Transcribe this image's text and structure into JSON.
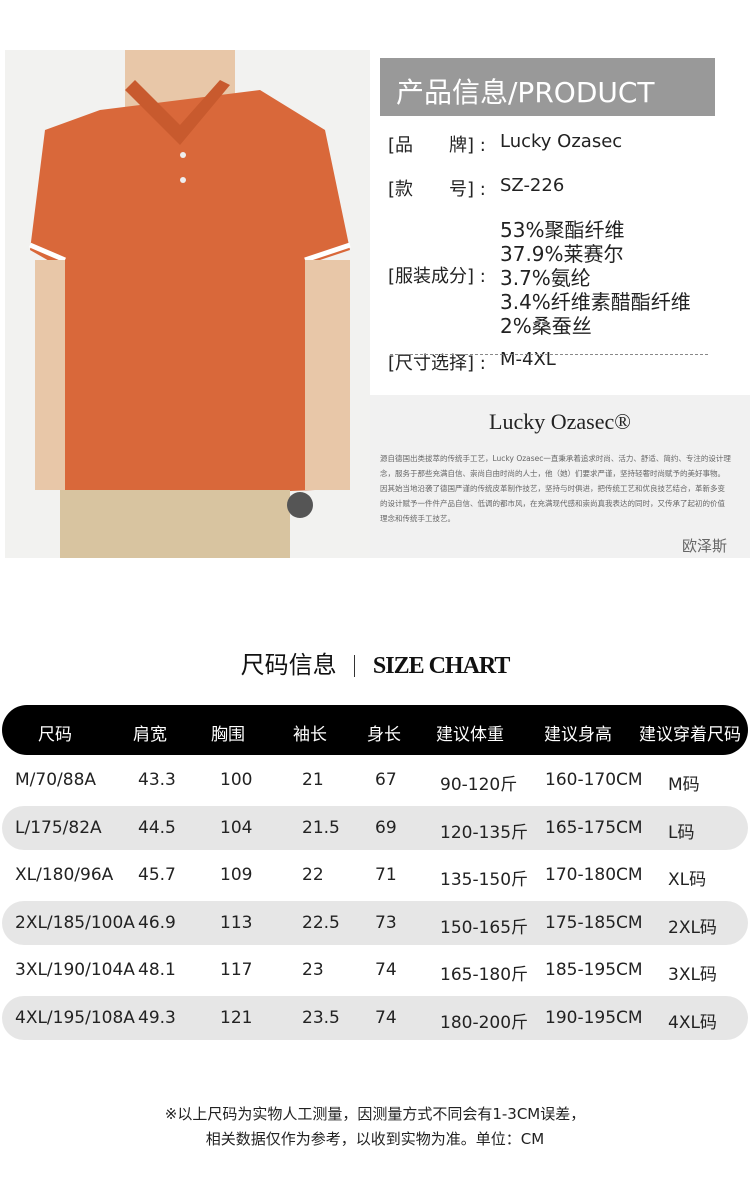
{
  "product": {
    "title": "产品信息/PRODUCT",
    "fields": [
      {
        "label": "[品　　牌] :",
        "values": [
          "Lucky Ozasec"
        ]
      },
      {
        "label": "[款　　号] :",
        "values": [
          "SZ-226"
        ]
      },
      {
        "label": "[服装成分] :",
        "values": [
          "53%聚酯纤维",
          "37.9%莱赛尔",
          "3.7%氨纶",
          "3.4%纤维素醋酯纤维",
          "2%桑蚕丝"
        ]
      },
      {
        "label": "[尺寸选择] :",
        "values": [
          "M-4XL"
        ]
      }
    ],
    "brand": "Lucky Ozasec®",
    "description": "源自德国出类拔萃的传统手工艺，Lucky Ozasec一直秉承着追求时尚、活力、舒适、简约、专注的设计理念，服务于那些充满自信、崇尚自由时尚的人士，他（她）们要求严谨，坚持轻奢时尚赋予的美好事物。因其始当地沿袭了德国严谨的传统皮革制作技艺，坚持与时俱进，把传统工艺和优良技艺结合，革新多变的设计赋予一件件产品自信、低调的都市风，在充满现代感和崇尚真我表达的同时，又传承了起初的价值理念和传统手工技艺。",
    "signature": "欧泽斯"
  },
  "size_chart": {
    "title": "尺码信息",
    "title_en": "SIZE CHART",
    "headers": [
      "尺码",
      "肩宽",
      "胸围",
      "袖长",
      "身长",
      "建议体重",
      "建议身高",
      "建议穿着尺码"
    ],
    "rows": [
      [
        "M/70/88A",
        "43.3",
        "100",
        "21",
        "67",
        "90-120斤",
        "160-170CM",
        "M码"
      ],
      [
        "L/175/82A",
        "44.5",
        "104",
        "21.5",
        "69",
        "120-135斤",
        "165-175CM",
        "L码"
      ],
      [
        "XL/180/96A",
        "45.7",
        "109",
        "22",
        "71",
        "135-150斤",
        "170-180CM",
        "XL码"
      ],
      [
        "2XL/185/100A",
        "46.9",
        "113",
        "22.5",
        "73",
        "150-165斤",
        "175-185CM",
        "2XL码"
      ],
      [
        "3XL/190/104A",
        "48.1",
        "117",
        "23",
        "74",
        "165-180斤",
        "185-195CM",
        "3XL码"
      ],
      [
        "4XL/195/108A",
        "49.3",
        "121",
        "23.5",
        "74",
        "180-200斤",
        "190-195CM",
        "4XL码"
      ]
    ],
    "notes": [
      "※以上尺码为实物人工测量，因测量方式不同会有1-3CM误差，",
      "相关数据仅作为参考，以收到实物为准。单位：CM"
    ]
  }
}
